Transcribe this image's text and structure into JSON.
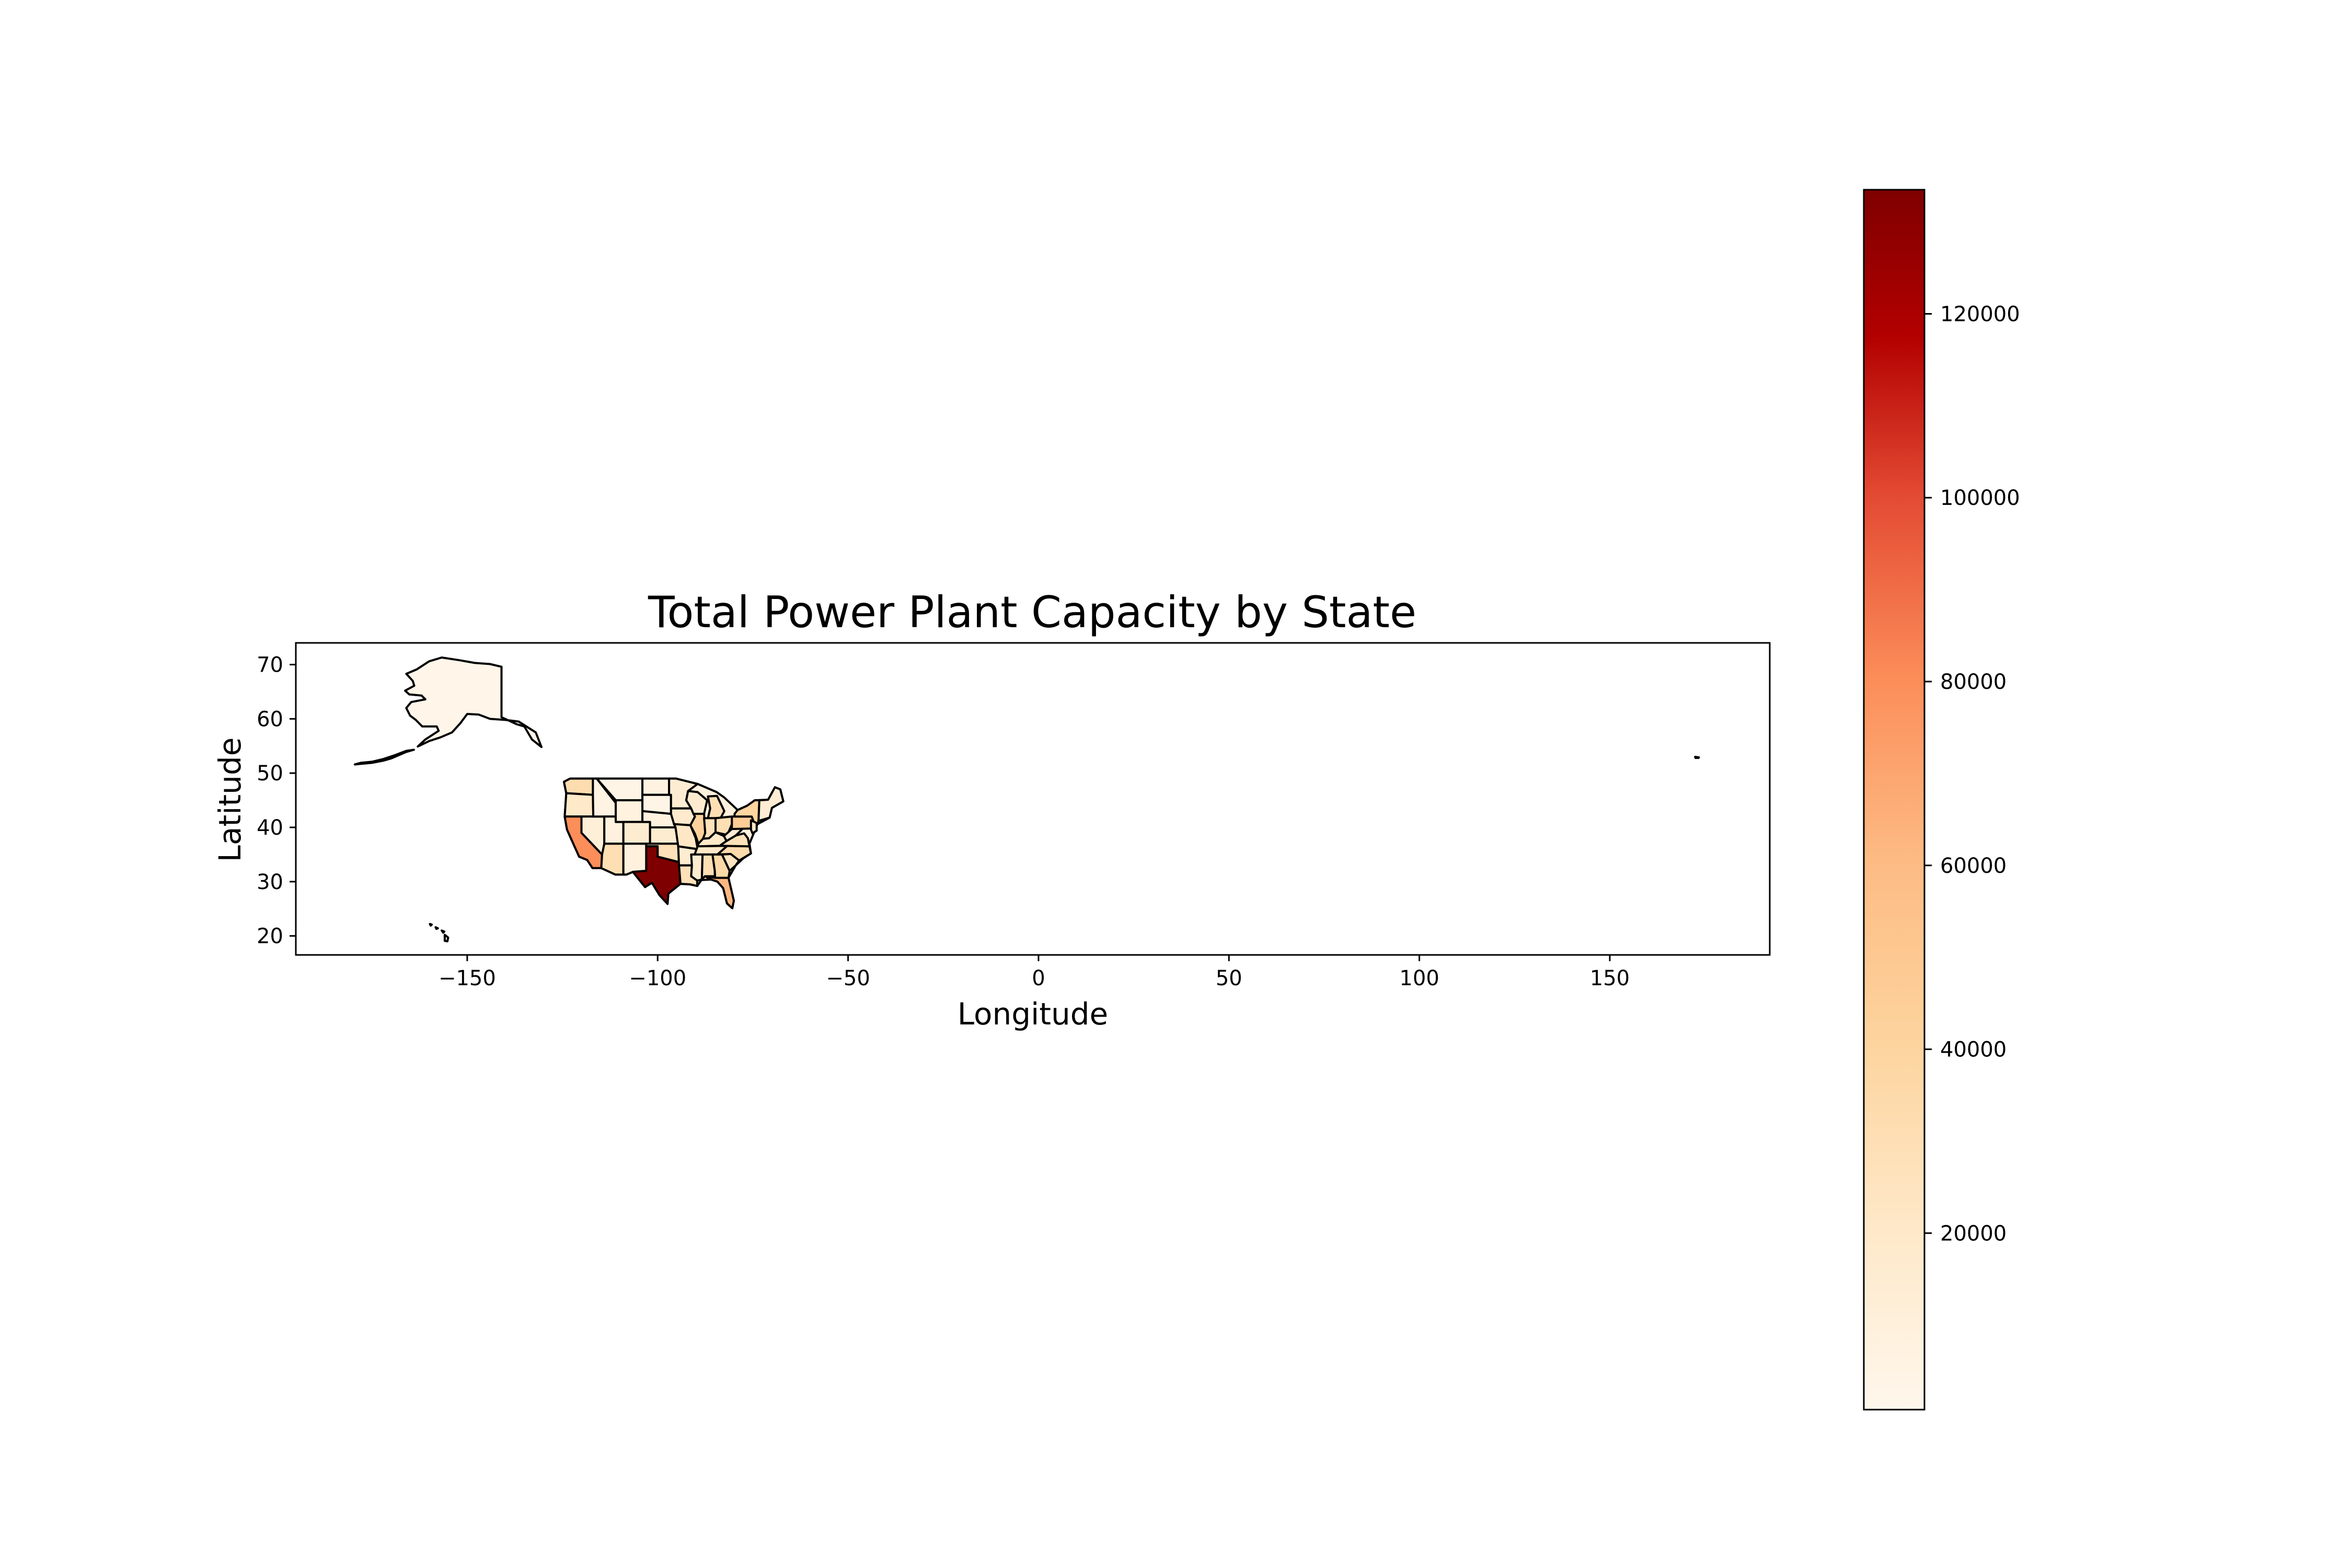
{
  "chart_data": {
    "type": "choropleth",
    "title": "Total Power Plant Capacity by State",
    "xlabel": "Longitude",
    "ylabel": "Latitude",
    "xlim": [
      -195,
      192
    ],
    "ylim": [
      16.5,
      74
    ],
    "xticks": [
      -150,
      -100,
      -50,
      0,
      50,
      100,
      150
    ],
    "yticks": [
      20,
      30,
      40,
      50,
      60,
      70
    ],
    "colormap": "OrRd",
    "colorbar": {
      "range": [
        800,
        133500
      ],
      "ticks": [
        20000,
        40000,
        60000,
        80000,
        100000,
        120000
      ]
    },
    "regions": [
      {
        "name": "Texas",
        "value": 133500
      },
      {
        "name": "California",
        "value": 80000
      },
      {
        "name": "Florida",
        "value": 62000
      },
      {
        "name": "Pennsylvania",
        "value": 47000
      },
      {
        "name": "Washington",
        "value": 32000
      },
      {
        "name": "Alaska",
        "value": 2500
      }
    ]
  }
}
